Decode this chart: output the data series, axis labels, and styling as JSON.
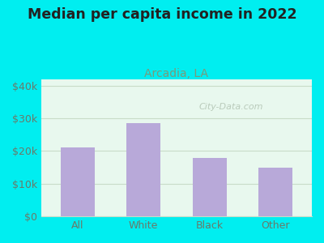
{
  "title": "Median per capita income in 2022",
  "subtitle": "Arcadia, LA",
  "categories": [
    "All",
    "White",
    "Black",
    "Other"
  ],
  "values": [
    21000,
    28500,
    18000,
    15000
  ],
  "bar_color": "#b8a9d9",
  "background_outer": "#00eef0",
  "background_inner": "#e8f8ee",
  "title_color": "#222222",
  "subtitle_color": "#7a9a7a",
  "tick_color": "#6a7a6a",
  "grid_color": "#c8dcc8",
  "ylim": [
    0,
    42000
  ],
  "yticks": [
    0,
    10000,
    20000,
    30000,
    40000
  ],
  "ytick_labels": [
    "$0",
    "$10k",
    "$20k",
    "$30k",
    "$40k"
  ],
  "watermark": "City-Data.com",
  "title_fontsize": 12.5,
  "subtitle_fontsize": 10
}
